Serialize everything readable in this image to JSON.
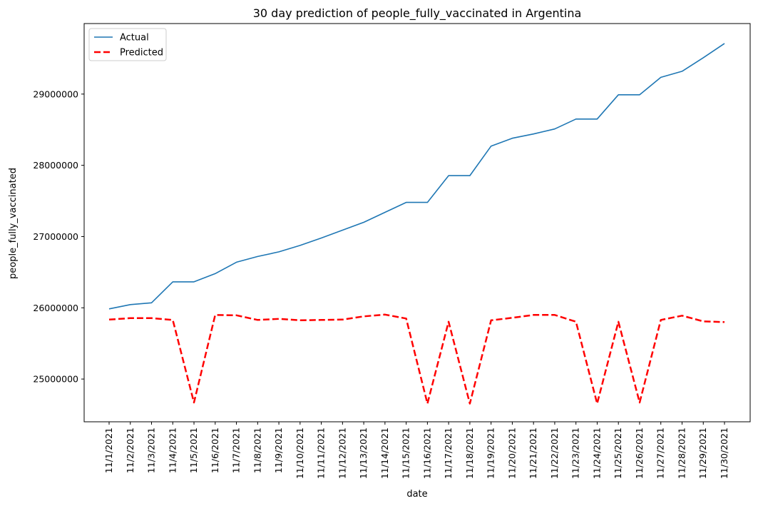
{
  "chart_data": {
    "type": "line",
    "title": "30 day prediction of people_fully_vaccinated in Argentina",
    "xlabel": "date",
    "ylabel": "people_fully_vaccinated",
    "x": [
      "11/1/2021",
      "11/2/2021",
      "11/3/2021",
      "11/4/2021",
      "11/5/2021",
      "11/6/2021",
      "11/7/2021",
      "11/8/2021",
      "11/9/2021",
      "11/10/2021",
      "11/11/2021",
      "11/12/2021",
      "11/13/2021",
      "11/14/2021",
      "11/15/2021",
      "11/16/2021",
      "11/17/2021",
      "11/18/2021",
      "11/19/2021",
      "11/20/2021",
      "11/21/2021",
      "11/22/2021",
      "11/23/2021",
      "11/24/2021",
      "11/25/2021",
      "11/26/2021",
      "11/27/2021",
      "11/28/2021",
      "11/29/2021",
      "11/30/2021"
    ],
    "ylim": [
      24400000,
      29990000
    ],
    "yticks": [
      25000000,
      26000000,
      27000000,
      28000000,
      29000000
    ],
    "ytick_labels": [
      "25000000",
      "26000000",
      "27000000",
      "28000000",
      "29000000"
    ],
    "grid": false,
    "legend": "top-left",
    "series": [
      {
        "name": "Actual",
        "color": "#1f77b4",
        "style": "solid",
        "values": [
          25985000,
          26045000,
          26070000,
          26365000,
          26365000,
          26480000,
          26640000,
          26720000,
          26785000,
          26875000,
          26980000,
          27090000,
          27200000,
          27340000,
          27480000,
          27480000,
          27855000,
          27855000,
          28270000,
          28380000,
          28440000,
          28510000,
          28650000,
          28650000,
          28990000,
          28990000,
          29235000,
          29320000,
          29510000,
          29710000
        ]
      },
      {
        "name": "Predicted",
        "color": "#ff0000",
        "style": "dashed",
        "values": [
          25835000,
          25855000,
          25855000,
          25830000,
          24670000,
          25900000,
          25895000,
          25830000,
          25845000,
          25825000,
          25830000,
          25835000,
          25880000,
          25905000,
          25850000,
          24655000,
          25805000,
          24655000,
          25825000,
          25860000,
          25900000,
          25900000,
          25805000,
          24655000,
          25805000,
          24670000,
          25830000,
          25890000,
          25810000,
          25800000
        ]
      }
    ]
  }
}
